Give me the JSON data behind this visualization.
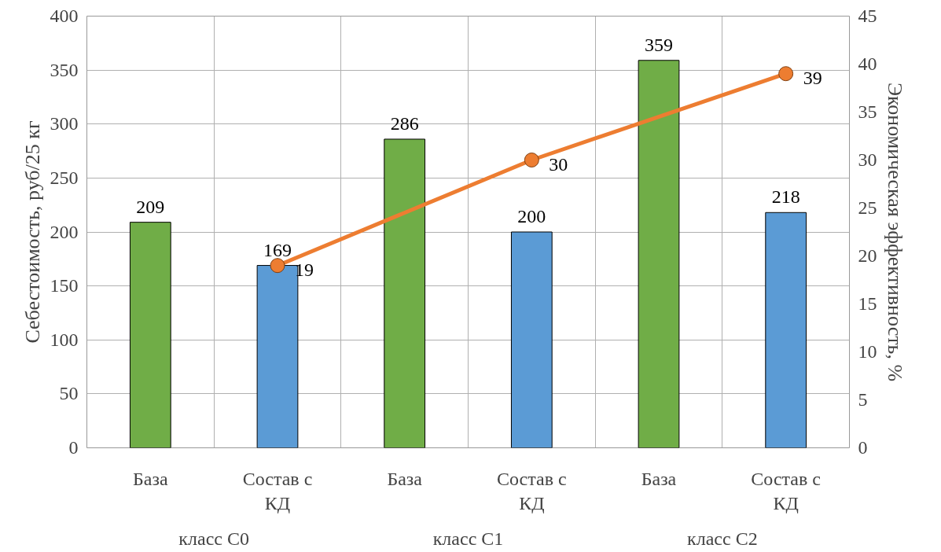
{
  "chart_data": {
    "type": "bar",
    "ylabel": "Себестоимость, руб/25 кг",
    "y2label": "Экономическая эффективность, %",
    "categories": [
      "База",
      "Состав с\nКД",
      "База",
      "Состав с\nКД",
      "База",
      "Состав с\nКД"
    ],
    "annotations": [
      "класс С0",
      "класс С1",
      "класс С2"
    ],
    "series": [
      {
        "colors": [
          "#70ad47",
          "#5b9bd5",
          "#70ad47",
          "#5b9bd5",
          "#70ad47",
          "#5b9bd5"
        ],
        "values": [
          209,
          169,
          286,
          200,
          359,
          218
        ]
      },
      {
        "type": "line",
        "axis": "y2",
        "color": "#ed7d31",
        "marker": "circle",
        "values": [
          null,
          19,
          null,
          30,
          null,
          39
        ]
      }
    ],
    "ylim": [
      0,
      400
    ],
    "yticks": [
      0,
      50,
      100,
      150,
      200,
      250,
      300,
      350,
      400
    ],
    "y2lim": [
      0,
      45
    ],
    "y2ticks": [
      0,
      5,
      10,
      15,
      20,
      25,
      30,
      35,
      40,
      45
    ],
    "data_labels": true,
    "grid": true
  }
}
